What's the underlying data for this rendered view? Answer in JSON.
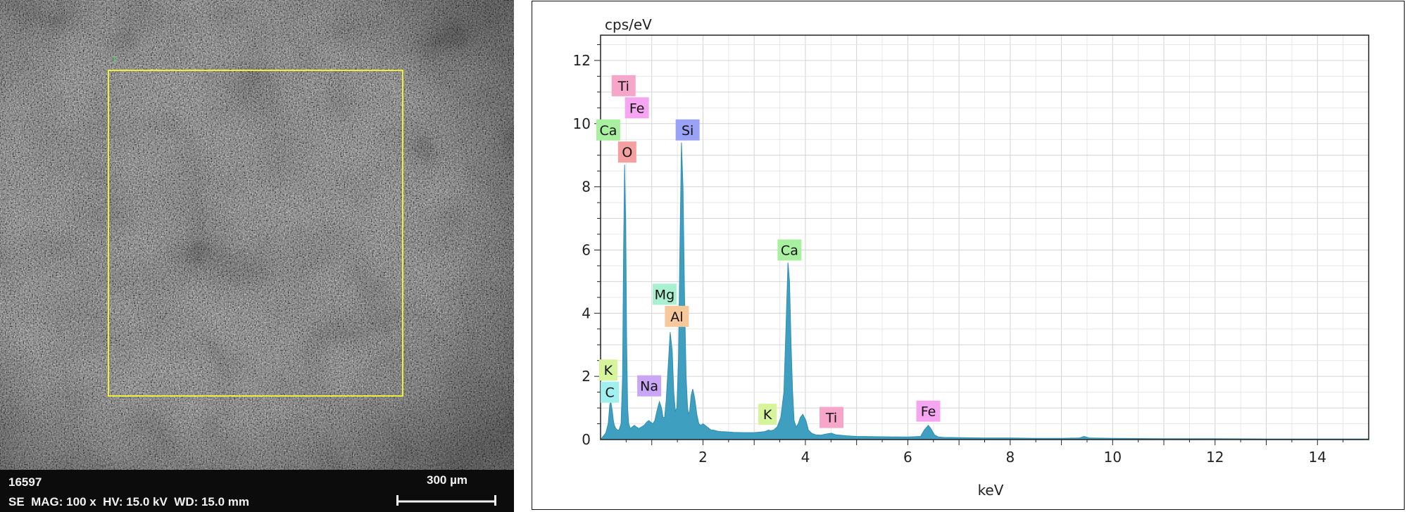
{
  "sem": {
    "image_id": "16597",
    "params": "SE  MAG: 100 x  HV: 15.0 kV  WD: 15.0 mm",
    "scale_label": "300 µm",
    "marker_label": "1",
    "roi_color": "#f2ef3a"
  },
  "chart_data": {
    "type": "line",
    "title": "",
    "xlabel": "keV",
    "ylabel": "cps/eV",
    "xlim": [
      0,
      15
    ],
    "ylim": [
      0,
      12.8
    ],
    "xticks": [
      2,
      4,
      6,
      8,
      10,
      12,
      14
    ],
    "yticks": [
      0,
      2,
      4,
      6,
      8,
      10,
      12
    ],
    "grid": true,
    "fill_color": "#3e9fc0",
    "series": [
      {
        "name": "",
        "x": [
          0.0,
          0.1,
          0.15,
          0.18,
          0.2,
          0.23,
          0.25,
          0.27,
          0.3,
          0.33,
          0.36,
          0.4,
          0.43,
          0.45,
          0.47,
          0.49,
          0.51,
          0.53,
          0.55,
          0.58,
          0.62,
          0.66,
          0.7,
          0.75,
          0.8,
          0.85,
          0.9,
          0.94,
          0.98,
          1.02,
          1.06,
          1.1,
          1.15,
          1.19,
          1.22,
          1.25,
          1.28,
          1.32,
          1.36,
          1.4,
          1.43,
          1.46,
          1.49,
          1.52,
          1.55,
          1.58,
          1.61,
          1.64,
          1.67,
          1.7,
          1.72,
          1.74,
          1.77,
          1.8,
          1.84,
          1.88,
          1.92,
          1.96,
          2.0,
          2.04,
          2.08,
          2.12,
          2.16,
          2.2,
          2.25,
          2.3,
          2.35,
          2.4,
          2.5,
          2.6,
          2.8,
          3.0,
          3.2,
          3.28,
          3.32,
          3.38,
          3.45,
          3.52,
          3.58,
          3.62,
          3.66,
          3.69,
          3.72,
          3.75,
          3.78,
          3.82,
          3.86,
          3.9,
          3.95,
          4.01,
          4.06,
          4.12,
          4.2,
          4.3,
          4.42,
          4.51,
          4.6,
          4.8,
          5.0,
          5.5,
          6.0,
          6.25,
          6.32,
          6.4,
          6.45,
          6.52,
          6.6,
          6.7,
          7.0,
          7.5,
          8.0,
          8.5,
          9.0,
          9.35,
          9.44,
          9.55,
          10.0,
          11.0,
          12.0,
          13.0,
          14.0,
          15.0
        ],
        "y": [
          0.0,
          0.2,
          0.5,
          1.1,
          1.2,
          0.9,
          0.6,
          0.45,
          0.35,
          0.3,
          0.3,
          0.5,
          2.0,
          6.0,
          8.7,
          7.0,
          3.0,
          1.0,
          0.5,
          0.35,
          0.4,
          0.45,
          0.4,
          0.35,
          0.4,
          0.45,
          0.55,
          0.6,
          0.55,
          0.5,
          0.6,
          0.9,
          1.2,
          1.0,
          0.7,
          0.7,
          1.2,
          2.3,
          3.4,
          2.8,
          1.5,
          0.9,
          1.0,
          2.5,
          6.0,
          9.4,
          8.0,
          4.5,
          2.0,
          1.0,
          0.8,
          0.9,
          1.4,
          1.6,
          1.3,
          0.8,
          0.5,
          0.45,
          0.5,
          0.45,
          0.4,
          0.35,
          0.3,
          0.3,
          0.28,
          0.26,
          0.25,
          0.25,
          0.24,
          0.23,
          0.22,
          0.22,
          0.25,
          0.3,
          0.28,
          0.3,
          0.4,
          0.7,
          1.5,
          3.5,
          5.6,
          5.0,
          3.0,
          1.5,
          0.6,
          0.4,
          0.5,
          0.7,
          0.8,
          0.6,
          0.3,
          0.2,
          0.15,
          0.14,
          0.18,
          0.2,
          0.15,
          0.12,
          0.1,
          0.09,
          0.08,
          0.1,
          0.3,
          0.45,
          0.35,
          0.15,
          0.08,
          0.07,
          0.06,
          0.05,
          0.05,
          0.04,
          0.04,
          0.05,
          0.1,
          0.05,
          0.04,
          0.03,
          0.03,
          0.02,
          0.02,
          0.02
        ]
      }
    ],
    "annotations": [
      {
        "label": "Ti",
        "x": 0.45,
        "y": 11.2,
        "color": "#f6a6c9"
      },
      {
        "label": "Fe",
        "x": 0.71,
        "y": 10.5,
        "color": "#f6a6f0"
      },
      {
        "label": "Ca",
        "x": 0.15,
        "y": 9.8,
        "color": "#a8f0a0"
      },
      {
        "label": "O",
        "x": 0.52,
        "y": 9.1,
        "color": "#f5a0a0"
      },
      {
        "label": "Si",
        "x": 1.7,
        "y": 9.8,
        "color": "#9aa2f6"
      },
      {
        "label": "Ca",
        "x": 3.69,
        "y": 6.0,
        "color": "#a8f0a0"
      },
      {
        "label": "Mg",
        "x": 1.25,
        "y": 4.6,
        "color": "#a8f0d0"
      },
      {
        "label": "Al",
        "x": 1.49,
        "y": 3.9,
        "color": "#f7c89a"
      },
      {
        "label": "K",
        "x": 0.15,
        "y": 2.2,
        "color": "#d6f59a"
      },
      {
        "label": "C",
        "x": 0.18,
        "y": 1.5,
        "color": "#a0f0f0"
      },
      {
        "label": "Na",
        "x": 0.95,
        "y": 1.7,
        "color": "#c9a6f6"
      },
      {
        "label": "K",
        "x": 3.26,
        "y": 0.8,
        "color": "#d6f59a"
      },
      {
        "label": "Ti",
        "x": 4.51,
        "y": 0.7,
        "color": "#f6a6c9"
      },
      {
        "label": "Fe",
        "x": 6.4,
        "y": 0.9,
        "color": "#f6a6f0"
      }
    ]
  }
}
